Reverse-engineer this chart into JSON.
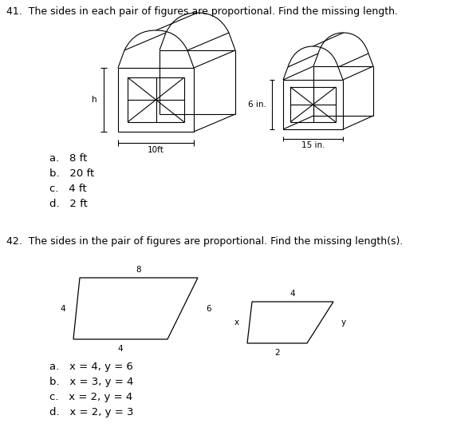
{
  "title41": "41.  The sides in each pair of figures are proportional. Find the missing length.",
  "title42": "42.  The sides in the pair of figures are proportional. Find the missing length(s).",
  "answers41": [
    "a.   8 ft",
    "b.   20 ft",
    "c.   4 ft",
    "d.   2 ft"
  ],
  "answers42": [
    "a.   x = 4, y = 6",
    "b.   x = 3, y = 4",
    "c.   x = 2, y = 4",
    "d.   x = 2, y = 3"
  ],
  "label_h": "h",
  "label_10ft": "10ft",
  "label_6in": "6 in.",
  "label_15in": "15 in.",
  "label_8_top": "8",
  "label_4_left": "4",
  "label_6_right": "6",
  "label_4_bottom": "4",
  "label_4_small_top": "4",
  "label_x": "x",
  "label_y": "y",
  "label_2": "2",
  "bg_color": "#ffffff",
  "line_color": "#000000",
  "text_color": "#000000",
  "font_size_title": 9.0,
  "font_size_labels": 7.5,
  "font_size_answers": 9.5
}
